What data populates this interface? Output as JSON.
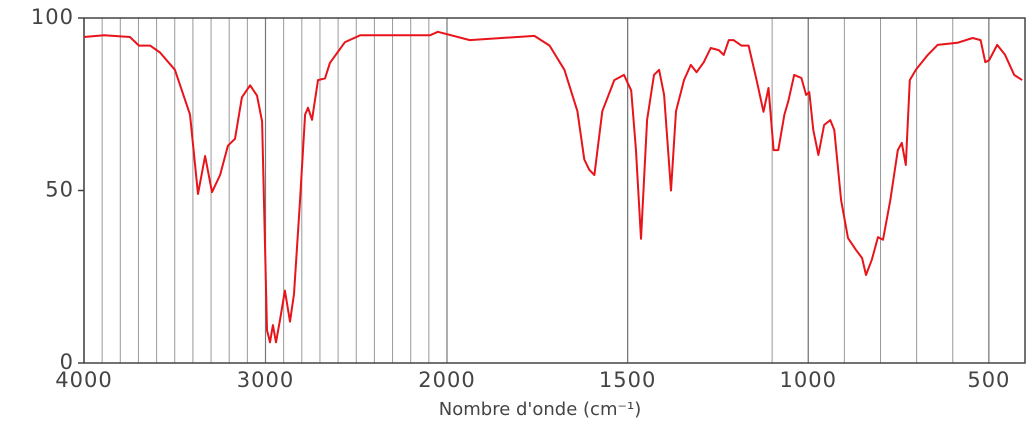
{
  "chart_data": {
    "type": "line",
    "x_label": "Nombre d'onde (cm⁻¹)",
    "xlim": [
      4000,
      400
    ],
    "x_scale_break": 2000,
    "ylim": [
      0,
      100
    ],
    "xticks": [
      4000,
      3000,
      2000,
      1500,
      1000,
      500
    ],
    "yticks": [
      0,
      50,
      100
    ],
    "xgrid": [
      3900,
      3800,
      3700,
      3600,
      3500,
      3400,
      3300,
      3200,
      3100,
      3000,
      2900,
      2800,
      2700,
      2600,
      2500,
      2400,
      2300,
      2200,
      2100,
      2000,
      1500,
      1100,
      1000,
      900,
      800,
      700,
      600,
      500
    ],
    "grid": true,
    "series": [
      {
        "color": "#e8141a",
        "x": [
          4000,
          3890,
          3747,
          3697,
          3636,
          3581,
          3499,
          3416,
          3372,
          3333,
          3295,
          3250,
          3207,
          3168,
          3130,
          3085,
          3047,
          3019,
          2992,
          2975,
          2959,
          2942,
          2920,
          2893,
          2865,
          2843,
          2810,
          2782,
          2766,
          2744,
          2711,
          2672,
          2645,
          2562,
          2479,
          2094,
          2050,
          1937,
          1758,
          1716,
          1675,
          1639,
          1620,
          1606,
          1592,
          1570,
          1537,
          1510,
          1490,
          1477,
          1463,
          1446,
          1427,
          1413,
          1399,
          1380,
          1366,
          1344,
          1325,
          1309,
          1289,
          1270,
          1248,
          1234,
          1220,
          1207,
          1185,
          1165,
          1143,
          1124,
          1110,
          1096,
          1083,
          1066,
          1055,
          1039,
          1019,
          1006,
          997,
          986,
          972,
          956,
          939,
          928,
          909,
          890,
          868,
          851,
          840,
          824,
          807,
          793,
          773,
          752,
          741,
          730,
          719,
          702,
          669,
          642,
          587,
          545,
          523,
          510,
          499,
          477,
          455,
          430,
          408
        ],
        "values": [
          94.5,
          95,
          94.5,
          92,
          92,
          90,
          85,
          72,
          49,
          60,
          49.5,
          54.5,
          63,
          65,
          77,
          80.5,
          77.5,
          70,
          9.5,
          6,
          11,
          6,
          12.5,
          21,
          12,
          20,
          47,
          72,
          74,
          70.5,
          82,
          82.5,
          87,
          93,
          95,
          95,
          96,
          93.6,
          94.8,
          92,
          85,
          73,
          59,
          56,
          54.5,
          73,
          82,
          83.5,
          79,
          62,
          36,
          70.5,
          83.5,
          85,
          77.7,
          50,
          73,
          82,
          86.4,
          84.3,
          87.2,
          91.3,
          90.7,
          89.3,
          93.6,
          93.6,
          92,
          92,
          82,
          72.8,
          79.7,
          61.7,
          61.7,
          72,
          76,
          83.5,
          82.6,
          77.7,
          78.5,
          67.5,
          60.3,
          69,
          70.4,
          67.5,
          47.2,
          36.2,
          32.8,
          30.4,
          25.5,
          29.9,
          36.5,
          35.7,
          47.2,
          61.7,
          63.8,
          57.4,
          82,
          85,
          89.3,
          92.2,
          92.8,
          94.2,
          93.6,
          87.2,
          87.8,
          92.2,
          89.3,
          83.5,
          82
        ]
      }
    ]
  }
}
